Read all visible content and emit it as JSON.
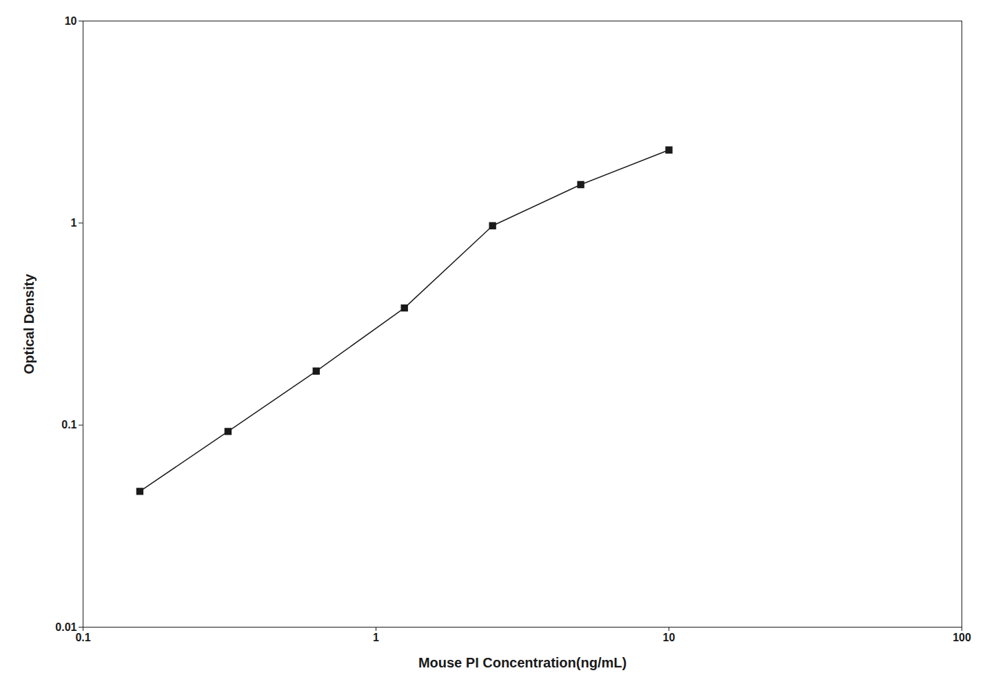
{
  "chart_data": {
    "type": "line",
    "x": [
      0.15625,
      0.3125,
      0.625,
      1.25,
      2.5,
      5.0,
      10.0
    ],
    "values": [
      0.047,
      0.093,
      0.185,
      0.38,
      0.97,
      1.55,
      2.3
    ],
    "xlabel": "Mouse PI Concentration(ng/mL)",
    "ylabel": "Optical Density",
    "xlim": [
      0.1,
      100
    ],
    "ylim": [
      0.01,
      10
    ],
    "xticks": [
      0.1,
      1,
      10,
      100
    ],
    "yticks": [
      0.01,
      0.1,
      1,
      10
    ],
    "log": true,
    "grid": false,
    "color": "#1a1a1a",
    "marker": "square"
  }
}
